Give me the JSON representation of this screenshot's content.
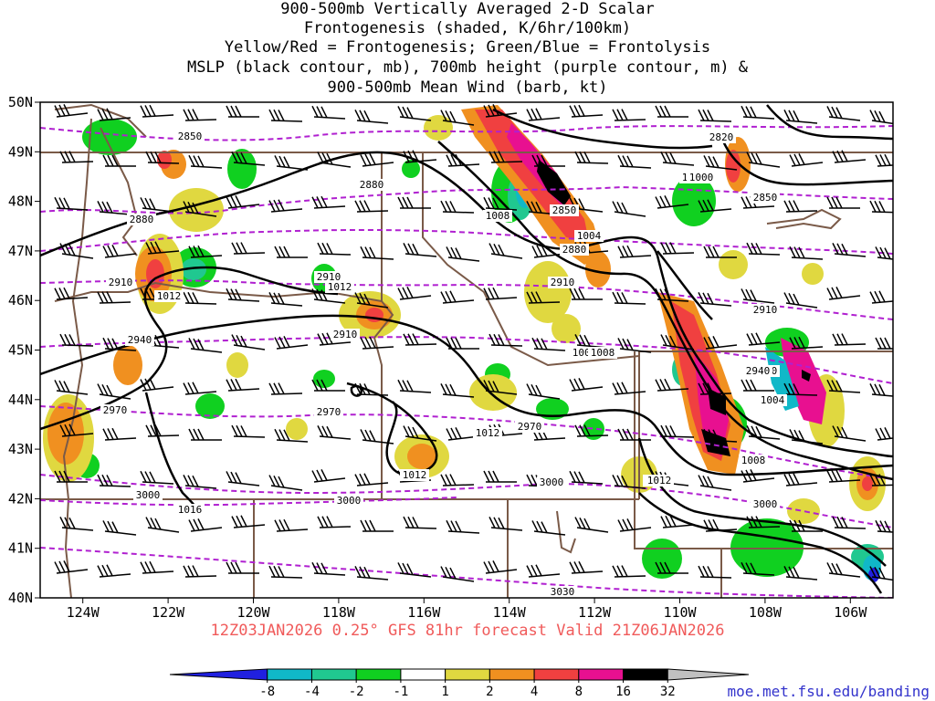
{
  "title_lines": [
    "900-500mb Vertically Averaged 2-D Scalar",
    "Frontogenesis (shaded, K/6hr/100km)",
    "Yellow/Red = Frontogenesis;  Green/Blue = Frontolysis",
    "MSLP (black contour, mb), 700mb height (purple contour, m) &",
    "900-500mb Mean Wind (barb, kt)"
  ],
  "axes": {
    "lon_ticks": [
      "124W",
      "122W",
      "120W",
      "118W",
      "116W",
      "114W",
      "112W",
      "110W",
      "108W",
      "106W"
    ],
    "lat_ticks": [
      "50N",
      "49N",
      "48N",
      "47N",
      "46N",
      "45N",
      "44N",
      "43N",
      "42N",
      "41N",
      "40N"
    ],
    "lon_range": [
      -125.0,
      -105.0
    ],
    "lat_range": [
      40,
      50
    ]
  },
  "colorbar": {
    "labels": [
      "-8",
      "-4",
      "-2",
      "-1",
      "1",
      "2",
      "4",
      "8",
      "16",
      "32"
    ],
    "colors": [
      "#2020e0",
      "#10b8c8",
      "#20c890",
      "#10d020",
      "#ffffff",
      "#e0d840",
      "#f09020",
      "#f04040",
      "#e81090",
      "#000000",
      "#c0c0c0"
    ]
  },
  "map_colors": {
    "mslp": "#000000",
    "height": "#b020d0",
    "border": "#7a5a48",
    "barb": "#000000"
  },
  "mslp_labels": [
    "1008",
    "1008",
    "1004",
    "1000",
    "1012",
    "1012",
    "1008",
    "1004",
    "1012",
    "1012",
    "1012",
    "1016",
    "1008",
    "1012",
    "1008"
  ],
  "height_labels": [
    "2850",
    "2880",
    "2910",
    "2910",
    "2940",
    "2970",
    "2970",
    "3000",
    "3000",
    "3000",
    "2910",
    "2850",
    "2820",
    "2880",
    "2880",
    "2850",
    "2910",
    "2910",
    "2940",
    "2970",
    "3000",
    "3030",
    "2940"
  ],
  "subtitle": "12Z03JAN2026 0.25° GFS 81hr forecast Valid 21Z06JAN2026",
  "credit": "moe.met.fsu.edu/banding"
}
